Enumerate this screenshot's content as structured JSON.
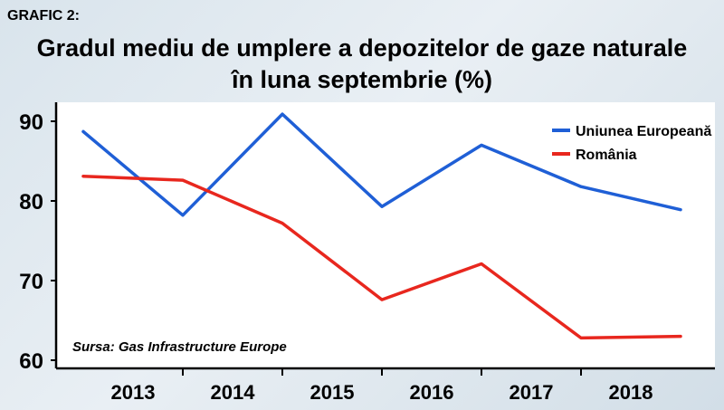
{
  "chart_label": "GRAFIC 2:",
  "chart_data": {
    "type": "line",
    "title": "Gradul mediu de umplere a depozitelor de gaze naturale",
    "subtitle": "în luna septembrie (%)",
    "categories": [
      "2013",
      "2014",
      "2015",
      "2016",
      "2017",
      "2018"
    ],
    "series": [
      {
        "name": "Uniunea Europeană",
        "color": "#1f5fd6",
        "x": [
          2012.5,
          2013.5,
          2014.5,
          2015.5,
          2016.5,
          2017.5,
          2018.5
        ],
        "values": [
          88.7,
          78.2,
          90.9,
          79.3,
          87.0,
          81.8,
          78.9
        ]
      },
      {
        "name": "România",
        "color": "#e8271e",
        "x": [
          2012.5,
          2013.5,
          2014.5,
          2015.5,
          2016.5,
          2017.5,
          2018.5
        ],
        "values": [
          83.1,
          82.6,
          77.2,
          67.6,
          72.1,
          62.8,
          63.0
        ]
      }
    ],
    "y_ticks": [
      60,
      70,
      80,
      90
    ],
    "ylim": [
      60,
      92
    ],
    "xlim": [
      2012.3,
      2018.8
    ],
    "legend_position": "top-right",
    "grid": false,
    "source": "Sursa: Gas Infrastructure Europe"
  }
}
